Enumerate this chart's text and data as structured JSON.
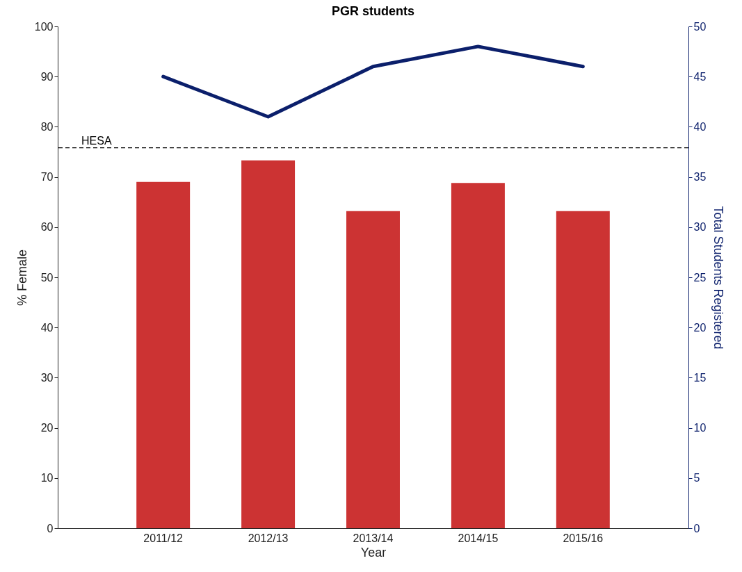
{
  "chart_data": {
    "type": "bar",
    "title": "PGR students",
    "xlabel": "Year",
    "ylabel": "% Female",
    "y2label": "Total Students Registered",
    "categories": [
      "2011/12",
      "2012/13",
      "2013/14",
      "2014/15",
      "2015/16"
    ],
    "series": [
      {
        "color": "#cc3333",
        "values": [
          69.0,
          73.3,
          63.2,
          68.8,
          63.2
        ]
      },
      {
        "type": "line",
        "axis": "y2",
        "color": "#0b1f6b",
        "values": [
          45,
          41,
          46,
          48,
          46
        ]
      }
    ],
    "ylim": [
      0,
      100
    ],
    "yticks": [
      0,
      10,
      20,
      30,
      40,
      50,
      60,
      70,
      80,
      90,
      100
    ],
    "y2lim": [
      0,
      50
    ],
    "y2ticks": [
      0,
      5,
      10,
      15,
      20,
      25,
      30,
      35,
      40,
      45,
      50
    ],
    "ref_lines": [
      {
        "axis": "y",
        "value": 75.8,
        "label": "HESA",
        "line_style": "dashed",
        "color": "#000000"
      }
    ],
    "grid": false
  }
}
